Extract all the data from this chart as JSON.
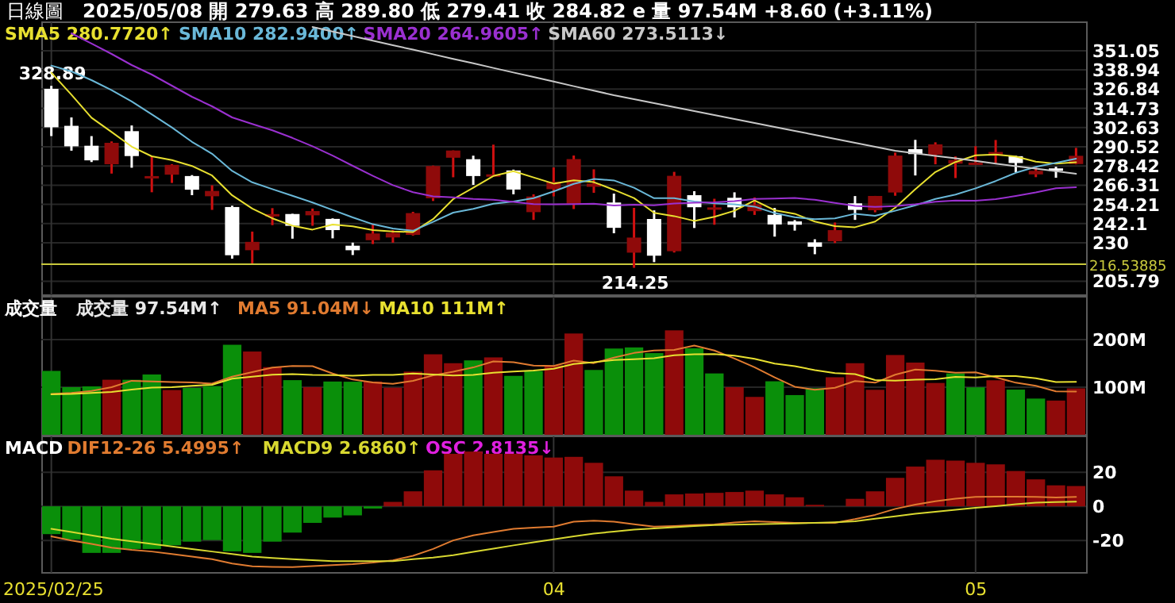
{
  "chart_data": [
    {
      "type": "candlestick",
      "title": "日線圖",
      "subtitle": "2025/05/08 開 279.63 高 289.80 低 279.41 收 284.82 e 量 97.54M +8.60 (+3.11%)",
      "categories": [
        "2025/02/25",
        null,
        null,
        null,
        null,
        null,
        null,
        null,
        null,
        null,
        null,
        null,
        null,
        null,
        null,
        null,
        null,
        null,
        null,
        null,
        null,
        null,
        null,
        null,
        null,
        "04",
        null,
        null,
        null,
        null,
        null,
        null,
        null,
        null,
        null,
        null,
        null,
        null,
        null,
        null,
        null,
        null,
        null,
        null,
        null,
        null,
        "05",
        null,
        null,
        null,
        null,
        null
      ],
      "ohlc": [
        [
          327.02,
          328.89,
          297.25,
          302.8
        ],
        [
          303.71,
          309.0,
          288.04,
          290.8
        ],
        [
          291.16,
          297.23,
          280.88,
          281.95
        ],
        [
          279.5,
          293.88,
          273.6,
          293.0
        ],
        [
          300.34,
          303.94,
          277.3,
          284.65
        ],
        [
          270.93,
          284.35,
          261.84,
          272.04
        ],
        [
          272.92,
          279.55,
          267.71,
          279.1
        ],
        [
          272.06,
          272.65,
          260.02,
          263.45
        ],
        [
          259.32,
          266.25,
          250.73,
          262.67
        ],
        [
          252.54,
          253.37,
          220.0,
          222.15
        ],
        [
          225.31,
          237.06,
          217.02,
          230.58
        ],
        [
          247.22,
          251.84,
          241.1,
          248.09
        ],
        [
          248.13,
          248.29,
          232.6,
          240.68
        ],
        [
          247.31,
          251.58,
          240.73,
          249.98
        ],
        [
          245.06,
          245.4,
          232.8,
          238.01
        ],
        [
          228.16,
          230.1,
          222.28,
          225.31
        ],
        [
          231.61,
          241.71,
          229.2,
          235.86
        ],
        [
          233.35,
          238.0,
          230.05,
          236.26
        ],
        [
          234.99,
          249.52,
          234.55,
          248.71
        ],
        [
          258.08,
          278.64,
          256.33,
          278.39
        ],
        [
          283.6,
          288.2,
          271.28,
          288.14
        ],
        [
          282.66,
          284.9,
          266.51,
          272.06
        ],
        [
          272.48,
          291.85,
          271.82,
          273.13
        ],
        [
          275.58,
          276.1,
          260.57,
          263.55
        ],
        [
          249.31,
          260.56,
          244.41,
          259.16
        ],
        [
          263.8,
          277.45,
          259.25,
          268.46
        ],
        [
          254.6,
          284.99,
          251.27,
          282.76
        ],
        [
          265.29,
          276.3,
          261.51,
          267.28
        ],
        [
          255.38,
          261.0,
          236.0,
          239.43
        ],
        [
          223.78,
          252.0,
          214.25,
          233.29
        ],
        [
          245.0,
          250.44,
          217.8,
          221.86
        ],
        [
          224.69,
          274.69,
          223.88,
          272.2
        ],
        [
          260.0,
          262.49,
          239.33,
          252.4
        ],
        [
          251.84,
          257.74,
          241.36,
          252.31
        ],
        [
          258.36,
          261.8,
          245.93,
          252.35
        ],
        [
          249.91,
          258.59,
          247.54,
          254.11
        ],
        [
          247.61,
          251.97,
          233.89,
          241.55
        ],
        [
          243.47,
          244.34,
          237.68,
          241.37
        ],
        [
          230.26,
          232.21,
          222.79,
          227.5
        ],
        [
          230.96,
          242.79,
          229.85,
          237.97
        ],
        [
          254.86,
          259.45,
          244.43,
          250.74
        ],
        [
          250.5,
          259.54,
          249.2,
          259.51
        ],
        [
          261.69,
          286.85,
          259.63,
          284.95
        ],
        [
          288.98,
          294.86,
          272.42,
          285.88
        ],
        [
          285.5,
          293.32,
          279.47,
          292.03
        ],
        [
          279.9,
          284.45,
          270.78,
          282.16
        ],
        [
          280.01,
          290.87,
          279.81,
          280.52
        ],
        [
          284.9,
          294.78,
          279.81,
          287.21
        ],
        [
          284.57,
          284.8,
          274.4,
          280.26
        ],
        [
          273.1,
          277.73,
          271.35,
          275.35
        ],
        [
          276.88,
          277.92,
          271.0,
          276.22
        ],
        [
          279.63,
          289.8,
          279.41,
          284.82
        ]
      ],
      "series": [
        {
          "name": "SMA5 280.7720↑",
          "type": "line",
          "color": "#e8e030",
          "values": [
            337.2,
            323.3,
            308.8,
            299.8,
            290.6,
            284.5,
            282.1,
            278.4,
            272.4,
            259.9,
            251.6,
            245.4,
            240.8,
            238.3,
            241.5,
            240.4,
            238.0,
            237.1,
            236.8,
            244.9,
            257.5,
            264.7,
            272.1,
            275.1,
            271.2,
            267.3,
            269.4,
            268.2,
            263.4,
            258.2,
            248.9,
            246.8,
            243.8,
            246.4,
            250.2,
            256.7,
            250.5,
            248.3,
            243.4,
            240.5,
            239.8,
            243.4,
            252.1,
            263.8,
            274.6,
            280.9,
            285.1,
            285.6,
            284.4,
            281.1,
            279.9,
            280.8
          ]
        },
        {
          "name": "SMA10 282.9400↑",
          "type": "line",
          "color": "#6ab8d8",
          "values": [
            341.7,
            338.0,
            332.5,
            326.2,
            319.1,
            310.9,
            302.7,
            293.6,
            286.1,
            275.3,
            268.1,
            263.8,
            259.6,
            255.4,
            250.7,
            246.0,
            241.7,
            239.0,
            237.6,
            243.2,
            249.0,
            251.4,
            254.6,
            256.0,
            258.1,
            262.4,
            267.1,
            270.2,
            269.3,
            264.7,
            258.1,
            258.1,
            256.0,
            254.9,
            254.2,
            252.8,
            248.7,
            246.1,
            244.9,
            245.4,
            248.3,
            247.0,
            250.2,
            253.6,
            257.6,
            260.4,
            264.3,
            268.9,
            274.1,
            277.9,
            280.4,
            283.0
          ]
        },
        {
          "name": "SMA20 264.9605↑",
          "type": "line",
          "color": "#9a30d0",
          "values": [
            null,
            362,
            355.6,
            349,
            342,
            336,
            329,
            322,
            316,
            309,
            304.9,
            300.9,
            296.1,
            290.8,
            284.9,
            278.5,
            272.2,
            266.3,
            261.9,
            259.3,
            258.6,
            257.6,
            257.1,
            255.7,
            254.4,
            254.2,
            254.4,
            254.6,
            253.5,
            254.0,
            253.6,
            254.8,
            255.3,
            255.5,
            256.2,
            257.6,
            257.9,
            258.2,
            257.1,
            255.1,
            253.2,
            252.6,
            253.1,
            254.3,
            255.9,
            256.6,
            256.5,
            257.5,
            259.5,
            261.7,
            264.4,
            265.0
          ]
        },
        {
          "name": "SMA60 273.5113↓",
          "type": "line",
          "color": "#c8c8c8",
          "values": [
            null,
            null,
            null,
            null,
            null,
            null,
            null,
            null,
            null,
            null,
            null,
            null,
            null,
            366,
            363.1,
            360.3,
            357.4,
            354.5,
            351.7,
            348.8,
            345.9,
            343.1,
            340.2,
            337.3,
            334.5,
            331.6,
            328.7,
            325.9,
            323,
            320.5,
            318,
            315.5,
            313,
            310.5,
            308,
            305.5,
            303,
            300.5,
            298,
            295.5,
            293,
            290.5,
            288,
            286.4,
            284.8,
            283.2,
            281.6,
            279.9,
            278.3,
            276.7,
            275.1,
            273.5
          ]
        }
      ],
      "ylim": [
        197,
        369
      ],
      "yticks": [
        351.05,
        338.94,
        326.84,
        314.73,
        302.63,
        290.52,
        278.42,
        266.31,
        254.21,
        242.1,
        230.0,
        205.79
      ],
      "ref_lines": [
        {
          "axis": "y",
          "value": 216.53885,
          "label": "216.53885",
          "color": "#c8c83c"
        }
      ],
      "annotations": [
        {
          "text": "328.89",
          "x": "2025/02/25",
          "y": 328.89
        },
        {
          "text": "214.25",
          "y": 214.25
        }
      ],
      "grid": true,
      "legend": "top left",
      "tick_labels": "y"
    },
    {
      "type": "bar",
      "ylabel": "成交量",
      "categories": [
        "2025/02/25",
        null,
        null,
        null,
        null,
        null,
        null,
        null,
        null,
        null,
        null,
        null,
        null,
        null,
        null,
        null,
        null,
        null,
        null,
        null,
        null,
        null,
        null,
        null,
        null,
        "04",
        null,
        null,
        null,
        null,
        null,
        null,
        null,
        null,
        null,
        null,
        null,
        null,
        null,
        null,
        null,
        null,
        null,
        null,
        null,
        null,
        "05",
        null,
        null,
        null,
        null,
        null
      ],
      "series": [
        {
          "name": "成交量 97.54M↑",
          "type": "bar",
          "color": "#e8e8e8",
          "values": [
            134.2,
            100.1,
            101.7,
            115.7,
            115.6,
            126.7,
            94.0,
            98.5,
            102.4,
            189.1,
            174.9,
            142.2,
            114.8,
            100.2,
            111.9,
            111.5,
            111.9,
            99.0,
            132.7,
            169.1,
            150.4,
            156.3,
            162.6,
            123.8,
            134.0,
            146.0,
            212.8,
            136.2,
            181.2,
            183.5,
            171.6,
            219.4,
            181.7,
            128.9,
            100.1,
            79.6,
            112.4,
            83.4,
            97.8,
            120.9,
            150.4,
            94.5,
            167.6,
            151.7,
            108.9,
            128.9,
            99.7,
            114.5,
            94.9,
            76.1,
            71.9,
            97.5
          ],
          "colors": [
            "#0a8f0a",
            "#0a8f0a",
            "#0a8f0a",
            "#8f0a0a",
            "#0a8f0a",
            "#0a8f0a",
            "#8f0a0a",
            "#0a8f0a",
            "#0a8f0a",
            "#0a8f0a",
            "#8f0a0a",
            "#8f0a0a",
            "#0a8f0a",
            "#8f0a0a",
            "#0a8f0a",
            "#0a8f0a",
            "#8f0a0a",
            "#8f0a0a",
            "#8f0a0a",
            "#8f0a0a",
            "#8f0a0a",
            "#0a8f0a",
            "#8f0a0a",
            "#0a8f0a",
            "#0a8f0a",
            "#8f0a0a",
            "#8f0a0a",
            "#0a8f0a",
            "#0a8f0a",
            "#0a8f0a",
            "#0a8f0a",
            "#8f0a0a",
            "#0a8f0a",
            "#0a8f0a",
            "#8f0a0a",
            "#8f0a0a",
            "#0a8f0a",
            "#0a8f0a",
            "#0a8f0a",
            "#8f0a0a",
            "#8f0a0a",
            "#8f0a0a",
            "#8f0a0a",
            "#8f0a0a",
            "#8f0a0a",
            "#0a8f0a",
            "#0a8f0a",
            "#8f0a0a",
            "#0a8f0a",
            "#0a8f0a",
            "#8f0a0a",
            "#8f0a0a"
          ]
        },
        {
          "name": "MA5 91.04M↓",
          "type": "line",
          "color": "#e07b30",
          "values": [
            86,
            88,
            92,
            100,
            113.5,
            112.0,
            110.7,
            110.1,
            107.4,
            122.1,
            131.8,
            141.4,
            144.7,
            144.2,
            128.8,
            116.1,
            110.1,
            106.9,
            113.4,
            124.8,
            132.6,
            141.5,
            154.2,
            152.4,
            145.4,
            144.5,
            155.8,
            150.6,
            162.0,
            171.9,
            177.1,
            178.4,
            187.5,
            177.0,
            160.3,
            141.9,
            120.5,
            100.9,
            94.7,
            98.8,
            113.0,
            109.4,
            126.2,
            137.0,
            134.6,
            130.3,
            131.4,
            120.7,
            109.4,
            102.8,
            91.4,
            91.0
          ]
        },
        {
          "name": "MA10 111M↑",
          "type": "line",
          "color": "#e8e030",
          "values": [
            85,
            86,
            88,
            90,
            95,
            99,
            100,
            103,
            105,
            117.8,
            121.9,
            126.1,
            127.4,
            125.8,
            125.5,
            124.0,
            125.8,
            125.8,
            128.8,
            126.8,
            124.4,
            125.8,
            130.6,
            132.9,
            135.1,
            138.6,
            148.7,
            152.4,
            157.2,
            158.7,
            160.8,
            167.1,
            169.1,
            169.5,
            166.1,
            159.5,
            149.5,
            144.2,
            135.9,
            129.6,
            127.5,
            115.0,
            113.6,
            115.9,
            116.7,
            121.7,
            120.4,
            123.5,
            123.2,
            118.7,
            110.9,
            111.2
          ]
        }
      ],
      "ylim": [
        0,
        290
      ],
      "yticks": [
        {
          "value": 200,
          "label": "200M"
        },
        {
          "value": 100,
          "label": "100M"
        }
      ],
      "grid": true,
      "legend": "top left",
      "tick_labels": "y"
    },
    {
      "type": "bar",
      "ylabel": "MACD",
      "categories": [
        "2025/02/25",
        null,
        null,
        null,
        null,
        null,
        null,
        null,
        null,
        null,
        null,
        null,
        null,
        null,
        null,
        null,
        null,
        null,
        null,
        null,
        null,
        null,
        null,
        null,
        null,
        "04",
        null,
        null,
        null,
        null,
        null,
        null,
        null,
        null,
        null,
        null,
        null,
        null,
        null,
        null,
        null,
        null,
        null,
        null,
        null,
        null,
        "05",
        null,
        null,
        null,
        null,
        null
      ],
      "series": [
        {
          "name": "DIF12-26 5.4995↑",
          "type": "line",
          "color": "#e07b30",
          "values": [
            -17.6,
            -20,
            -22,
            -24.2,
            -25.5,
            -26.5,
            -28,
            -29.5,
            -31,
            -33.5,
            -35.2,
            -35.5,
            -35.6,
            -35,
            -34.5,
            -33.9,
            -33,
            -31.7,
            -29,
            -25,
            -20,
            -17,
            -15,
            -13.2,
            -12.5,
            -11.9,
            -9,
            -8.4,
            -9,
            -10.5,
            -11.9,
            -11.5,
            -11,
            -10.6,
            -9.5,
            -8.8,
            -9.2,
            -9.7,
            -9.7,
            -9.7,
            -7.5,
            -5,
            -1.5,
            1,
            3,
            4.5,
            5.5,
            5.7,
            5.7,
            5.5,
            5.2,
            5.5
          ]
        },
        {
          "name": "MACD9 2.6860↑",
          "type": "line",
          "color": "#d8d830",
          "values": [
            -13.2,
            -15,
            -17,
            -19,
            -20.5,
            -22,
            -23.5,
            -25,
            -26.5,
            -28,
            -29.5,
            -30.3,
            -31,
            -31.6,
            -32.1,
            -32.1,
            -32.1,
            -32.1,
            -31,
            -30,
            -28.6,
            -26.7,
            -24.8,
            -22.9,
            -21.1,
            -19.4,
            -17.6,
            -16,
            -14.8,
            -13.6,
            -12.9,
            -12.3,
            -11.6,
            -11,
            -10.8,
            -10.5,
            -10.3,
            -10.1,
            -9.7,
            -9.3,
            -8.8,
            -7.3,
            -5.9,
            -4.4,
            -3.2,
            -2,
            -0.9,
            0.1,
            1.2,
            2.2,
            2.5,
            2.7
          ]
        },
        {
          "name": "OSC 2.8135↓",
          "type": "bar",
          "color": "#e020e0",
          "values": [
            -16.3,
            -19.4,
            -27.3,
            -27.3,
            -25,
            -25,
            -22.9,
            -20.7,
            -19.8,
            -26.4,
            -27.3,
            -20.7,
            -15.4,
            -9.7,
            -6.6,
            -5.3,
            -1.3,
            2.6,
            8.8,
            21.1,
            30.8,
            32.1,
            30.8,
            30.8,
            29.9,
            28.6,
            29,
            25.5,
            17.6,
            9.2,
            2.6,
            7,
            7.5,
            7.9,
            8.4,
            9.2,
            7,
            5.3,
            0.9,
            null,
            4.4,
            8.8,
            16.7,
            23.3,
            27.3,
            26.8,
            25.5,
            24.6,
            20.7,
            15.8,
            12.3,
            11.9
          ],
          "colors": [
            "#0a8f0a",
            "#0a8f0a",
            "#0a8f0a",
            "#0a8f0a",
            "#0a8f0a",
            "#0a8f0a",
            "#0a8f0a",
            "#0a8f0a",
            "#0a8f0a",
            "#0a8f0a",
            "#0a8f0a",
            "#0a8f0a",
            "#0a8f0a",
            "#0a8f0a",
            "#0a8f0a",
            "#0a8f0a",
            "#0a8f0a",
            "#8f0a0a",
            "#8f0a0a",
            "#8f0a0a",
            "#8f0a0a",
            "#8f0a0a",
            "#8f0a0a",
            "#8f0a0a",
            "#8f0a0a",
            "#8f0a0a",
            "#8f0a0a",
            "#8f0a0a",
            "#8f0a0a",
            "#8f0a0a",
            "#8f0a0a",
            "#8f0a0a",
            "#8f0a0a",
            "#8f0a0a",
            "#8f0a0a",
            "#8f0a0a",
            "#8f0a0a",
            "#8f0a0a",
            "#8f0a0a",
            null,
            "#8f0a0a",
            "#8f0a0a",
            "#8f0a0a",
            "#8f0a0a",
            "#8f0a0a",
            "#8f0a0a",
            "#8f0a0a",
            "#8f0a0a",
            "#8f0a0a",
            "#8f0a0a",
            "#8f0a0a",
            "#8f0a0a"
          ]
        }
      ],
      "ylim": [
        -39,
        41
      ],
      "yticks": [
        20,
        0,
        -20
      ],
      "grid": true,
      "legend": "top left"
    }
  ]
}
